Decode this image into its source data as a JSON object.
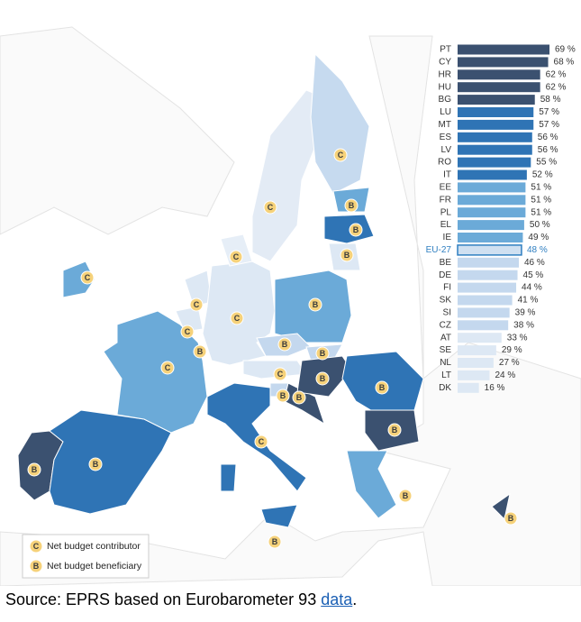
{
  "chart_data": {
    "type": "bar",
    "orientation": "horizontal",
    "categories": [
      "PT",
      "CY",
      "HR",
      "HU",
      "BG",
      "LU",
      "MT",
      "ES",
      "LV",
      "RO",
      "IT",
      "EE",
      "FR",
      "PL",
      "EL",
      "IE",
      "EU-27",
      "BE",
      "DE",
      "FI",
      "SK",
      "SI",
      "CZ",
      "AT",
      "SE",
      "NL",
      "LT",
      "DK"
    ],
    "values": [
      69,
      68,
      62,
      62,
      58,
      57,
      57,
      56,
      56,
      55,
      52,
      51,
      51,
      51,
      50,
      49,
      48,
      46,
      45,
      44,
      41,
      39,
      38,
      33,
      29,
      27,
      24,
      16
    ],
    "value_labels": [
      "69 %",
      "68 %",
      "62 %",
      "62 %",
      "58 %",
      "57 %",
      "57 %",
      "56 %",
      "56 %",
      "55 %",
      "52 %",
      "51 %",
      "51 %",
      "51 %",
      "50 %",
      "49 %",
      "48 %",
      "46 %",
      "45 %",
      "44 %",
      "41 %",
      "39 %",
      "38 %",
      "33 %",
      "29 %",
      "27 %",
      "24 %",
      "16 %"
    ],
    "colors": [
      "#3b5170",
      "#3b5170",
      "#3b5170",
      "#3b5170",
      "#3b5170",
      "#2f74b5",
      "#2f74b5",
      "#2f74b5",
      "#2f74b5",
      "#2f74b5",
      "#2f74b5",
      "#6baad8",
      "#6baad8",
      "#6baad8",
      "#6baad8",
      "#6baad8",
      "#cfe0f1",
      "#c4d8ee",
      "#c4d8ee",
      "#c4d8ee",
      "#c4d8ee",
      "#c4d8ee",
      "#c4d8ee",
      "#dde8f4",
      "#dde8f4",
      "#dde8f4",
      "#dde8f4",
      "#dde8f4"
    ],
    "highlight": "EU-27",
    "highlight_color": "#2f7fc1"
  },
  "map": {
    "markers": [
      "C",
      "C",
      "B",
      "B",
      "B",
      "C",
      "C",
      "B",
      "C",
      "C",
      "C",
      "B",
      "C",
      "B",
      "B",
      "C",
      "B",
      "B",
      "B",
      "B",
      "B",
      "C",
      "B",
      "B",
      "B",
      "B",
      "B"
    ],
    "legend": [
      {
        "symbol": "C",
        "label": "Net budget contributor"
      },
      {
        "symbol": "B",
        "label": "Net budget beneficiary"
      }
    ]
  },
  "source": {
    "prefix": "Source: EPRS based on Eurobarometer 93 ",
    "link": "data",
    "suffix": "."
  }
}
